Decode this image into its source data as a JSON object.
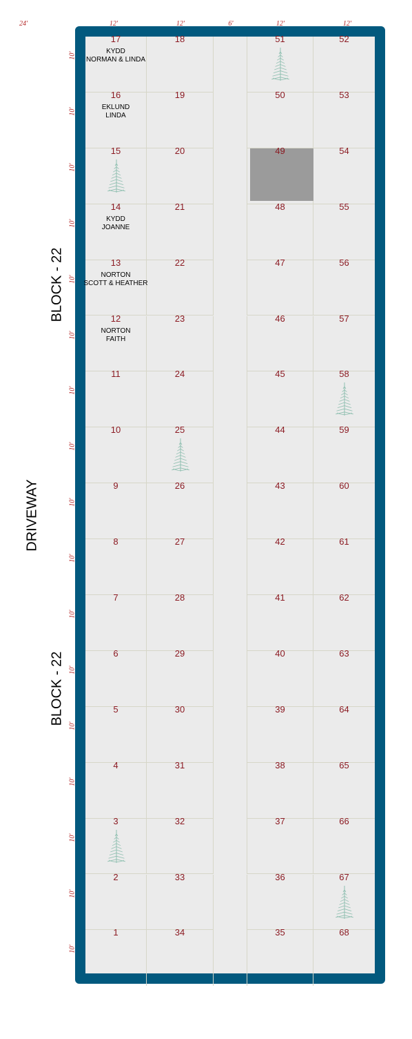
{
  "dimensions": {
    "top_left": "24'",
    "columns": [
      "12'",
      "12'",
      "6'",
      "12'",
      "12'"
    ],
    "rows": [
      "10'",
      "10'",
      "10'",
      "10'",
      "10'",
      "10'",
      "10'",
      "10'",
      "10'",
      "10'",
      "10'",
      "10'",
      "10'",
      "10'",
      "10'",
      "10'",
      "10'"
    ]
  },
  "labels": {
    "block_upper": "BLOCK - 22",
    "block_lower": "BLOCK - 22",
    "driveway": "DRIVEWAY"
  },
  "colors": {
    "border": "#02597e",
    "plot_number": "#8b1a22",
    "dimension": "#b22323",
    "tree": "#8fbfb0",
    "reserved": "#9b9b9b"
  },
  "plots": {
    "col1": [
      "17",
      "16",
      "15",
      "14",
      "13",
      "12",
      "11",
      "10",
      "9",
      "8",
      "7",
      "6",
      "5",
      "4",
      "3",
      "2",
      "1"
    ],
    "col2": [
      "18",
      "19",
      "20",
      "21",
      "22",
      "23",
      "24",
      "25",
      "26",
      "27",
      "28",
      "29",
      "30",
      "31",
      "32",
      "33",
      "34"
    ],
    "col3": [
      "51",
      "50",
      "49",
      "48",
      "47",
      "46",
      "45",
      "44",
      "43",
      "42",
      "41",
      "40",
      "39",
      "38",
      "37",
      "36",
      "35"
    ],
    "col4": [
      "52",
      "53",
      "54",
      "55",
      "56",
      "57",
      "58",
      "59",
      "60",
      "61",
      "62",
      "63",
      "64",
      "65",
      "66",
      "67",
      "68"
    ]
  },
  "occupants": {
    "17": "KYDD\nNORMAN & LINDA",
    "16": "EKLUND\nLINDA",
    "14": "KYDD\nJOANNE",
    "13": "NORTON\nSCOTT & HEATHER",
    "12": "NORTON\nFAITH"
  },
  "trees": [
    "51",
    "15",
    "58",
    "25",
    "3",
    "67"
  ],
  "reserved": [
    "49"
  ]
}
